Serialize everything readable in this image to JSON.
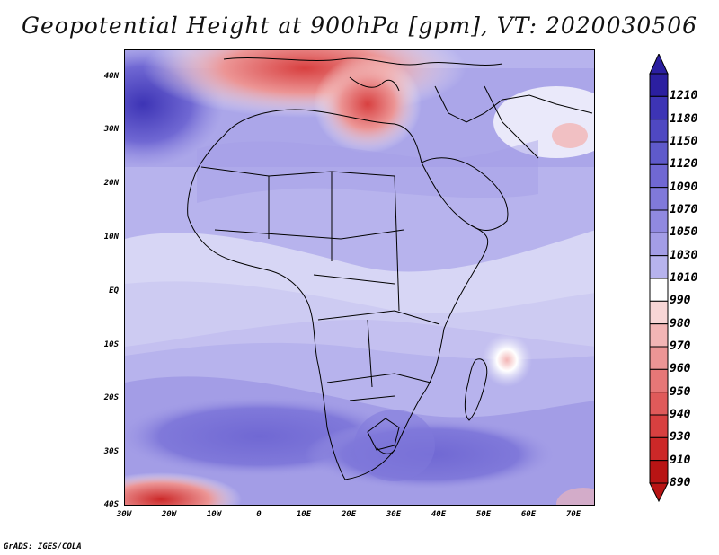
{
  "title": "Geopotential Height at 900hPa [gpm], VT: 2020030506",
  "footer": "GrADS: IGES/COLA",
  "map": {
    "lat_labels": [
      "40N",
      "30N",
      "20N",
      "10N",
      "EQ",
      "10S",
      "20S",
      "30S",
      "40S"
    ],
    "lon_labels": [
      "30W",
      "20W",
      "10W",
      "0",
      "10E",
      "20E",
      "30E",
      "40E",
      "50E",
      "60E",
      "70E"
    ]
  },
  "colorbar": {
    "levels": [
      "1210",
      "1180",
      "1150",
      "1120",
      "1090",
      "1070",
      "1050",
      "1030",
      "1010",
      "990",
      "980",
      "970",
      "960",
      "950",
      "940",
      "930",
      "910",
      "890"
    ],
    "colors": [
      "#2b1fa0",
      "#3d34b5",
      "#4f48c2",
      "#5f5acb",
      "#7068d3",
      "#8079da",
      "#9089e0",
      "#a39de6",
      "#b7b3ed",
      "#ffffff",
      "#f8d6d6",
      "#f3b5b5",
      "#ec9595",
      "#e67777",
      "#df5a5a",
      "#d84040",
      "#cc2828",
      "#b81414"
    ]
  }
}
